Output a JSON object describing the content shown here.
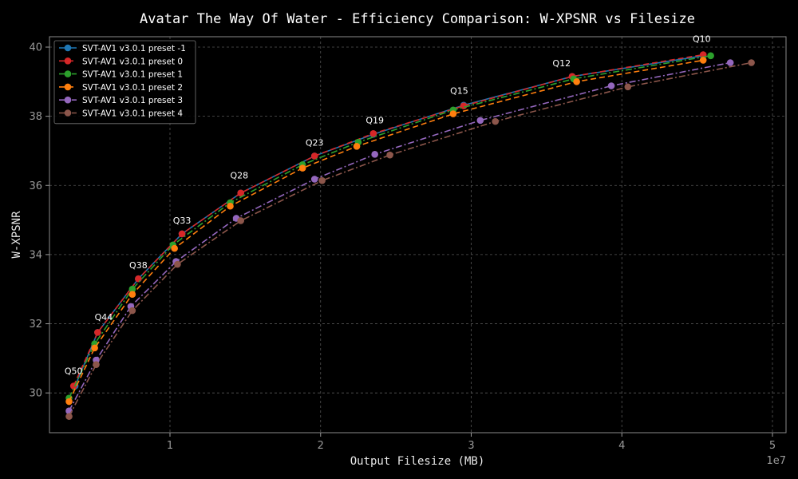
{
  "chart_data": {
    "type": "line",
    "title": "Avatar The Way Of Water - Efficiency Comparison: W-XPSNR vs Filesize",
    "xlabel": "Output Filesize (MB)",
    "ylabel": "W-XPSNR",
    "x_offset_label": "1e7",
    "xlim": [
      2000000,
      50900000
    ],
    "ylim": [
      28.85,
      40.3
    ],
    "xticks": [
      10000000,
      20000000,
      30000000,
      40000000,
      50000000
    ],
    "xtick_labels": [
      "1",
      "2",
      "3",
      "4",
      "5"
    ],
    "yticks": [
      30,
      32,
      34,
      36,
      38,
      40
    ],
    "ytick_labels": [
      "30",
      "32",
      "34",
      "36",
      "38",
      "40"
    ],
    "grid": true,
    "legend_position": "top-left",
    "annotations": [
      {
        "text": "Q10",
        "x": 45300000,
        "y": 40.15
      },
      {
        "text": "Q12",
        "x": 36000000,
        "y": 39.45
      },
      {
        "text": "Q15",
        "x": 29200000,
        "y": 38.65
      },
      {
        "text": "Q19",
        "x": 23600000,
        "y": 37.8
      },
      {
        "text": "Q23",
        "x": 19600000,
        "y": 37.15
      },
      {
        "text": "Q28",
        "x": 14600000,
        "y": 36.2
      },
      {
        "text": "Q33",
        "x": 10800000,
        "y": 34.9
      },
      {
        "text": "Q38",
        "x": 7900000,
        "y": 33.6
      },
      {
        "text": "Q44",
        "x": 5600000,
        "y": 32.1
      },
      {
        "text": "Q50",
        "x": 3600000,
        "y": 30.55
      }
    ],
    "series": [
      {
        "name": "SVT-AV1 v3.0.1 preset -1",
        "color": "#1f77b4",
        "dash": "solid",
        "x": [
          3700000,
          5200000,
          7900000,
          10800000,
          14700000,
          19600000,
          23500000,
          29500000,
          36700000,
          45400000
        ],
        "y": [
          30.2,
          31.75,
          33.3,
          34.6,
          35.78,
          36.85,
          37.48,
          38.32,
          39.15,
          39.75
        ]
      },
      {
        "name": "SVT-AV1 v3.0.1 preset 0",
        "color": "#d62728",
        "dash": "dash",
        "x": [
          3600000,
          5200000,
          7900000,
          10800000,
          14700000,
          19600000,
          23500000,
          29500000,
          36700000,
          45400000
        ],
        "y": [
          30.2,
          31.75,
          33.3,
          34.6,
          35.78,
          36.85,
          37.5,
          38.3,
          39.15,
          39.78
        ]
      },
      {
        "name": "SVT-AV1 v3.0.1 preset 1",
        "color": "#2ca02c",
        "dash": "dashdot",
        "x": [
          3300000,
          5000000,
          7500000,
          10200000,
          14000000,
          18800000,
          22500000,
          28800000,
          36800000,
          45900000
        ],
        "y": [
          29.85,
          31.42,
          33.0,
          34.28,
          35.5,
          36.6,
          37.25,
          38.18,
          39.08,
          39.75
        ]
      },
      {
        "name": "SVT-AV1 v3.0.1 preset 2",
        "color": "#ff7f0e",
        "dash": "dash",
        "x": [
          3300000,
          5000000,
          7500000,
          10300000,
          14000000,
          18800000,
          22400000,
          28800000,
          37000000,
          45400000
        ],
        "y": [
          29.75,
          31.3,
          32.85,
          34.18,
          35.4,
          36.5,
          37.13,
          38.07,
          39.0,
          39.62
        ]
      },
      {
        "name": "SVT-AV1 v3.0.1 preset 3",
        "color": "#9467bd",
        "dash": "dashdot",
        "x": [
          3300000,
          5100000,
          7400000,
          10400000,
          14400000,
          19600000,
          23600000,
          30600000,
          39300000,
          47200000
        ],
        "y": [
          29.48,
          30.95,
          32.5,
          33.8,
          35.05,
          36.18,
          36.9,
          37.88,
          38.88,
          39.55
        ]
      },
      {
        "name": "SVT-AV1 v3.0.1 preset 4",
        "color": "#8c564b",
        "dash": "dashdot",
        "x": [
          3300000,
          5100000,
          7500000,
          10500000,
          14700000,
          20100000,
          24600000,
          31600000,
          40400000,
          48600000
        ],
        "y": [
          29.32,
          30.82,
          32.38,
          33.72,
          34.98,
          36.14,
          36.88,
          37.85,
          38.85,
          39.55
        ]
      }
    ]
  }
}
